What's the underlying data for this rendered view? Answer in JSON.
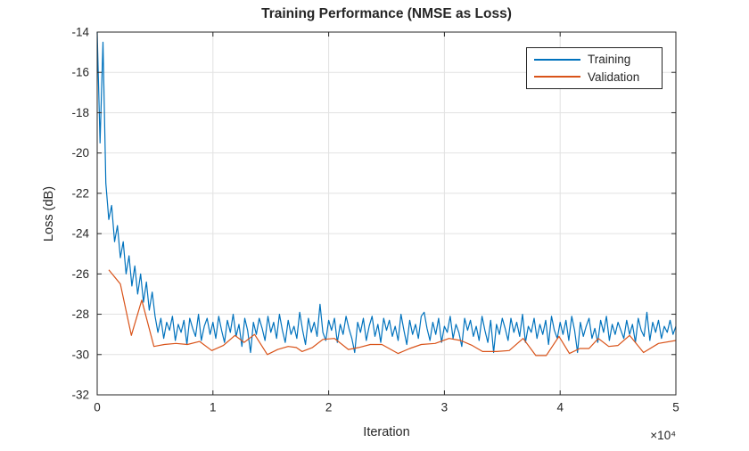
{
  "figure": {
    "background": "#ffffff",
    "axes_color": "#262626",
    "grid_color": "#e2e2e2"
  },
  "chart_data": {
    "type": "line",
    "title": "Training Performance (NMSE as Loss)",
    "xlabel": "Iteration",
    "ylabel": "Loss (dB)",
    "x_axis_multiplier_label": "×10⁴",
    "xlim": [
      0,
      50000
    ],
    "ylim": [
      -32,
      -14
    ],
    "grid": true,
    "xticks": {
      "values": [
        0,
        10000,
        20000,
        30000,
        40000,
        50000
      ],
      "labels": [
        "0",
        "1",
        "2",
        "3",
        "4",
        "5"
      ]
    },
    "yticks": {
      "values": [
        -32,
        -30,
        -28,
        -26,
        -24,
        -22,
        -20,
        -18,
        -16,
        -14
      ],
      "labels": [
        "-32",
        "-30",
        "-28",
        "-26",
        "-24",
        "-22",
        "-20",
        "-18",
        "-16",
        "-14"
      ]
    },
    "legend": {
      "position": "northeast",
      "entries": [
        {
          "label": "Training",
          "color": "#0072BD"
        },
        {
          "label": "Validation",
          "color": "#D95319"
        }
      ]
    },
    "series": [
      {
        "name": "Training",
        "color": "#0072BD",
        "x_start": 0,
        "x_step": 250,
        "y": [
          -14.0,
          -19.5,
          -14.5,
          -21.5,
          -23.3,
          -22.6,
          -24.4,
          -23.6,
          -25.2,
          -24.4,
          -26.0,
          -25.1,
          -26.6,
          -25.6,
          -27.0,
          -26.0,
          -27.4,
          -26.4,
          -27.8,
          -26.9,
          -28.1,
          -28.9,
          -28.2,
          -29.2,
          -28.4,
          -28.8,
          -28.1,
          -29.3,
          -28.5,
          -28.9,
          -28.3,
          -29.5,
          -28.2,
          -28.7,
          -29.1,
          -28.0,
          -29.3,
          -28.6,
          -28.2,
          -29.0,
          -28.4,
          -29.2,
          -28.1,
          -28.8,
          -29.4,
          -28.3,
          -28.9,
          -28.0,
          -29.1,
          -28.5,
          -29.6,
          -28.2,
          -28.8,
          -29.9,
          -28.4,
          -29.0,
          -28.2,
          -28.7,
          -29.3,
          -28.1,
          -28.9,
          -28.4,
          -29.2,
          -28.0,
          -28.8,
          -29.4,
          -28.3,
          -29.0,
          -28.6,
          -29.2,
          -27.9,
          -28.8,
          -29.5,
          -28.2,
          -28.9,
          -28.4,
          -29.1,
          -27.5,
          -28.9,
          -29.3,
          -28.3,
          -28.8,
          -28.2,
          -29.4,
          -28.5,
          -29.0,
          -28.1,
          -28.7,
          -29.2,
          -29.9,
          -28.4,
          -28.9,
          -28.2,
          -29.3,
          -28.6,
          -28.1,
          -29.1,
          -28.5,
          -29.4,
          -28.2,
          -28.8,
          -28.3,
          -29.1,
          -28.6,
          -29.3,
          -28.0,
          -28.8,
          -29.5,
          -28.3,
          -29.0,
          -28.5,
          -29.2,
          -28.1,
          -27.9,
          -28.7,
          -29.3,
          -28.4,
          -29.0,
          -28.2,
          -29.4,
          -28.6,
          -28.9,
          -28.1,
          -29.2,
          -28.5,
          -28.9,
          -29.6,
          -28.2,
          -28.8,
          -28.3,
          -29.1,
          -28.6,
          -29.3,
          -28.1,
          -28.8,
          -29.4,
          -28.3,
          -29.9,
          -28.5,
          -29.0,
          -28.2,
          -28.7,
          -29.3,
          -28.2,
          -28.9,
          -28.4,
          -29.1,
          -28.0,
          -29.4,
          -28.6,
          -28.9,
          -28.2,
          -29.2,
          -28.5,
          -29.0,
          -28.3,
          -29.5,
          -28.1,
          -28.8,
          -29.2,
          -28.4,
          -29.0,
          -28.3,
          -29.3,
          -28.1,
          -28.8,
          -29.9,
          -28.4,
          -29.1,
          -28.6,
          -28.2,
          -29.2,
          -28.7,
          -29.4,
          -28.3,
          -28.9,
          -28.1,
          -29.3,
          -28.5,
          -29.0,
          -28.4,
          -28.8,
          -29.2,
          -28.3,
          -29.0,
          -28.5,
          -29.4,
          -28.2,
          -28.8,
          -29.1,
          -27.9,
          -29.3,
          -28.4,
          -28.9,
          -28.3,
          -29.2,
          -28.6,
          -28.9,
          -28.3,
          -29.0,
          -28.6
        ]
      },
      {
        "name": "Validation",
        "color": "#D95319",
        "points": [
          [
            1000,
            -25.8
          ],
          [
            2000,
            -26.5
          ],
          [
            2950,
            -29.05
          ],
          [
            3850,
            -27.3
          ],
          [
            4900,
            -29.6
          ],
          [
            5800,
            -29.5
          ],
          [
            6800,
            -29.45
          ],
          [
            7800,
            -29.5
          ],
          [
            8850,
            -29.35
          ],
          [
            9900,
            -29.8
          ],
          [
            10900,
            -29.55
          ],
          [
            11900,
            -29.05
          ],
          [
            12700,
            -29.4
          ],
          [
            13600,
            -29.0
          ],
          [
            14700,
            -30.0
          ],
          [
            15600,
            -29.75
          ],
          [
            16500,
            -29.6
          ],
          [
            17200,
            -29.65
          ],
          [
            17700,
            -29.85
          ],
          [
            18600,
            -29.65
          ],
          [
            19500,
            -29.25
          ],
          [
            20500,
            -29.2
          ],
          [
            21700,
            -29.75
          ],
          [
            22600,
            -29.65
          ],
          [
            23600,
            -29.5
          ],
          [
            24600,
            -29.5
          ],
          [
            26000,
            -29.95
          ],
          [
            27000,
            -29.7
          ],
          [
            28000,
            -29.5
          ],
          [
            29200,
            -29.45
          ],
          [
            30400,
            -29.2
          ],
          [
            31400,
            -29.3
          ],
          [
            32400,
            -29.55
          ],
          [
            33300,
            -29.85
          ],
          [
            34500,
            -29.85
          ],
          [
            35600,
            -29.8
          ],
          [
            36800,
            -29.2
          ],
          [
            37900,
            -30.05
          ],
          [
            38800,
            -30.05
          ],
          [
            39900,
            -29.1
          ],
          [
            40800,
            -29.95
          ],
          [
            41700,
            -29.7
          ],
          [
            42500,
            -29.7
          ],
          [
            43300,
            -29.2
          ],
          [
            44200,
            -29.6
          ],
          [
            45000,
            -29.55
          ],
          [
            46000,
            -29.05
          ],
          [
            47200,
            -29.9
          ],
          [
            48500,
            -29.45
          ],
          [
            50000,
            -29.3
          ]
        ]
      }
    ]
  }
}
